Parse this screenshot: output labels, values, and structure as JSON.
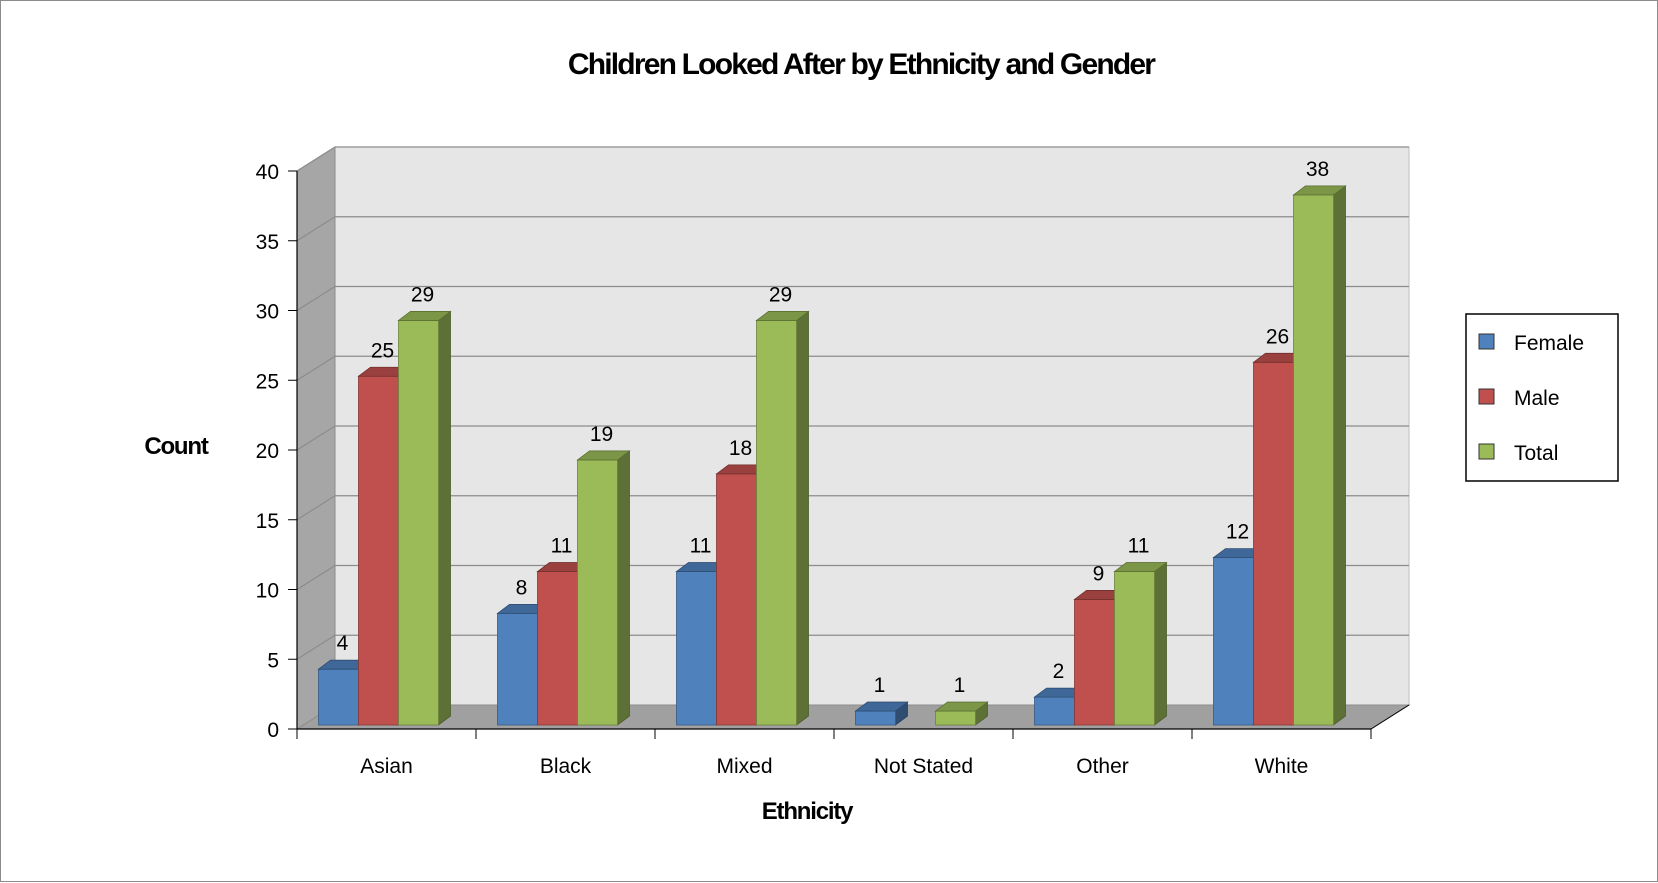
{
  "chart_data": {
    "type": "bar",
    "title": "Children Looked After by Ethnicity and Gender",
    "xlabel": "Ethnicity",
    "ylabel": "Count",
    "categories": [
      "Asian",
      "Black",
      "Mixed",
      "Not Stated",
      "Other",
      "White"
    ],
    "series": [
      {
        "name": "Female",
        "values": [
          4,
          8,
          11,
          1,
          2,
          12
        ],
        "color": "#4f81bd"
      },
      {
        "name": "Male",
        "values": [
          25,
          11,
          18,
          null,
          9,
          26
        ],
        "color": "#c0504d"
      },
      {
        "name": "Total",
        "values": [
          29,
          19,
          29,
          1,
          11,
          38
        ],
        "color": "#9bbb59"
      }
    ],
    "ylim": [
      0,
      40
    ],
    "yticks": [
      "0",
      "5",
      "10",
      "15",
      "20",
      "25",
      "30",
      "35",
      "40"
    ],
    "grid": true,
    "three_d": true,
    "legend_position": "right"
  }
}
